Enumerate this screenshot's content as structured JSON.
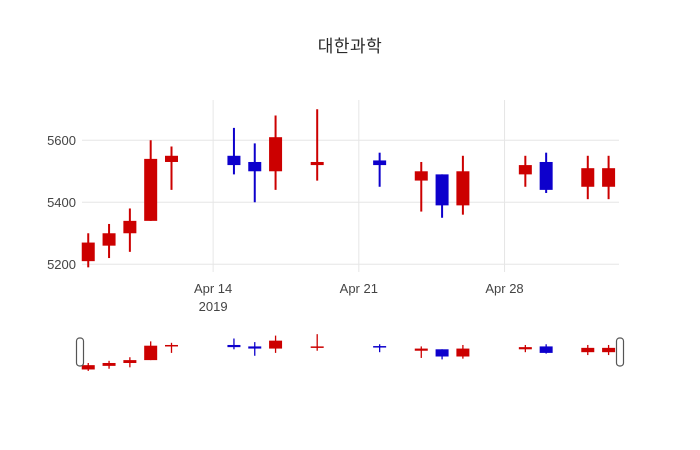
{
  "title": "대한과학",
  "colors": {
    "increasing": "#cc0000",
    "decreasing": "#0d00cc",
    "grid": "#e6e6e6",
    "tick_text": "#444444",
    "title_text": "#2a2a2a",
    "background": "#ffffff",
    "slider_handle_fill": "#ffffff",
    "slider_handle_border": "#555555"
  },
  "chart_data": {
    "type": "candlestick",
    "title": "대한과학",
    "legend": "none",
    "grid": "on",
    "x_axis": {
      "ticks": [
        {
          "day": 6,
          "label": "Apr 14",
          "sublabel": "2019"
        },
        {
          "day": 13,
          "label": "Apr 21",
          "sublabel": ""
        },
        {
          "day": 20,
          "label": "Apr 28",
          "sublabel": ""
        }
      ],
      "range_days": [
        -0.3,
        25.5
      ]
    },
    "y_axis": {
      "ticks": [
        5200,
        5400,
        5600
      ],
      "range": [
        5175,
        5730
      ]
    },
    "rangeslider": {
      "enabled": true
    },
    "candles": [
      {
        "date": "2019-04-08",
        "day": 0,
        "open": 5210,
        "high": 5300,
        "low": 5190,
        "close": 5270
      },
      {
        "date": "2019-04-09",
        "day": 1,
        "open": 5260,
        "high": 5330,
        "low": 5220,
        "close": 5300
      },
      {
        "date": "2019-04-10",
        "day": 2,
        "open": 5300,
        "high": 5380,
        "low": 5240,
        "close": 5340
      },
      {
        "date": "2019-04-11",
        "day": 3,
        "open": 5340,
        "high": 5600,
        "low": 5340,
        "close": 5540
      },
      {
        "date": "2019-04-12",
        "day": 4,
        "open": 5530,
        "high": 5580,
        "low": 5440,
        "close": 5550
      },
      {
        "date": "2019-04-15",
        "day": 7,
        "open": 5550,
        "high": 5640,
        "low": 5490,
        "close": 5520
      },
      {
        "date": "2019-04-16",
        "day": 8,
        "open": 5530,
        "high": 5590,
        "low": 5400,
        "close": 5500
      },
      {
        "date": "2019-04-17",
        "day": 9,
        "open": 5500,
        "high": 5680,
        "low": 5440,
        "close": 5610
      },
      {
        "date": "2019-04-19",
        "day": 11,
        "open": 5520,
        "high": 5700,
        "low": 5470,
        "close": 5530
      },
      {
        "date": "2019-04-22",
        "day": 14,
        "open": 5535,
        "high": 5560,
        "low": 5450,
        "close": 5520
      },
      {
        "date": "2019-04-24",
        "day": 16,
        "open": 5470,
        "high": 5530,
        "low": 5370,
        "close": 5500
      },
      {
        "date": "2019-04-25",
        "day": 17,
        "open": 5490,
        "high": 5490,
        "low": 5350,
        "close": 5390
      },
      {
        "date": "2019-04-26",
        "day": 18,
        "open": 5390,
        "high": 5550,
        "low": 5360,
        "close": 5500
      },
      {
        "date": "2019-04-29",
        "day": 21,
        "open": 5490,
        "high": 5550,
        "low": 5450,
        "close": 5520
      },
      {
        "date": "2019-04-30",
        "day": 22,
        "open": 5530,
        "high": 5560,
        "low": 5430,
        "close": 5440
      },
      {
        "date": "2019-05-02",
        "day": 24,
        "open": 5450,
        "high": 5550,
        "low": 5410,
        "close": 5510
      },
      {
        "date": "2019-05-03",
        "day": 25,
        "open": 5450,
        "high": 5550,
        "low": 5410,
        "close": 5510
      }
    ]
  }
}
